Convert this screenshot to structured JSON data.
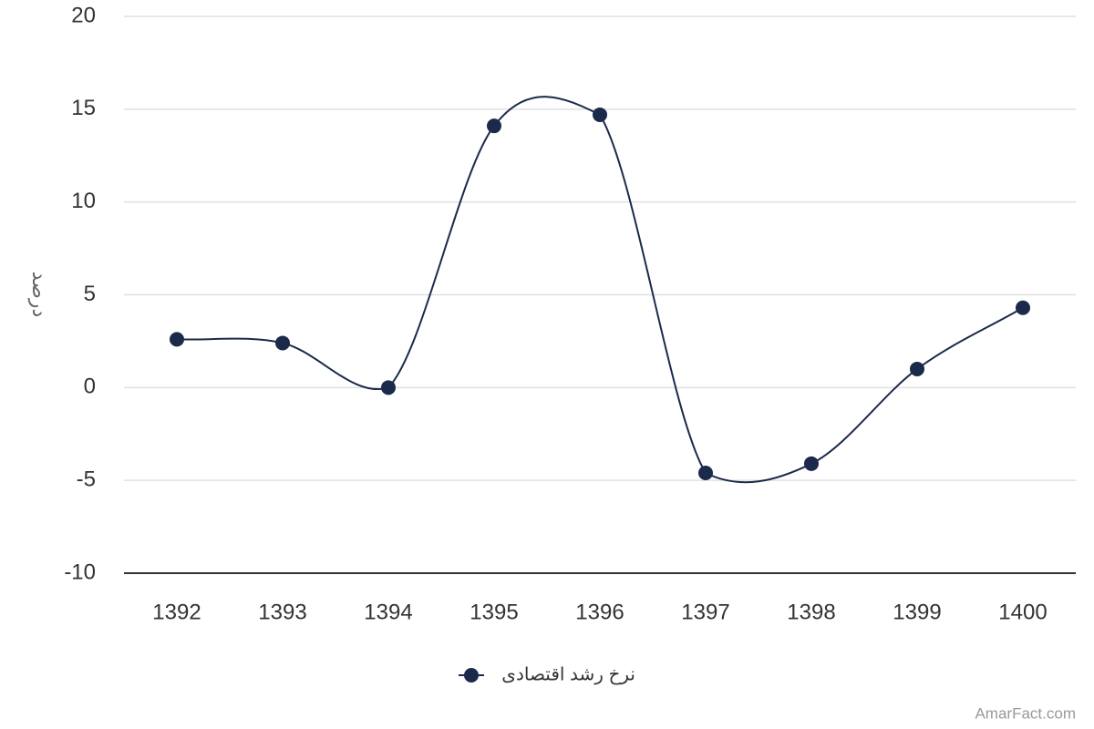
{
  "chart_data": {
    "type": "line",
    "y_label": "درصد",
    "categories": [
      "1392",
      "1393",
      "1394",
      "1395",
      "1396",
      "1397",
      "1398",
      "1399",
      "1400"
    ],
    "series": [
      {
        "name": "نرخ رشد اقتصادی",
        "color": "#1b2a4a",
        "values": [
          2.6,
          2.4,
          0,
          14.1,
          14.7,
          -4.6,
          -4.1,
          1.0,
          4.3
        ]
      }
    ],
    "ylim": [
      -10,
      20
    ],
    "yticks": [
      -10,
      -5,
      0,
      5,
      10,
      15,
      20
    ],
    "grid": true,
    "credit": "AmarFact.com"
  }
}
